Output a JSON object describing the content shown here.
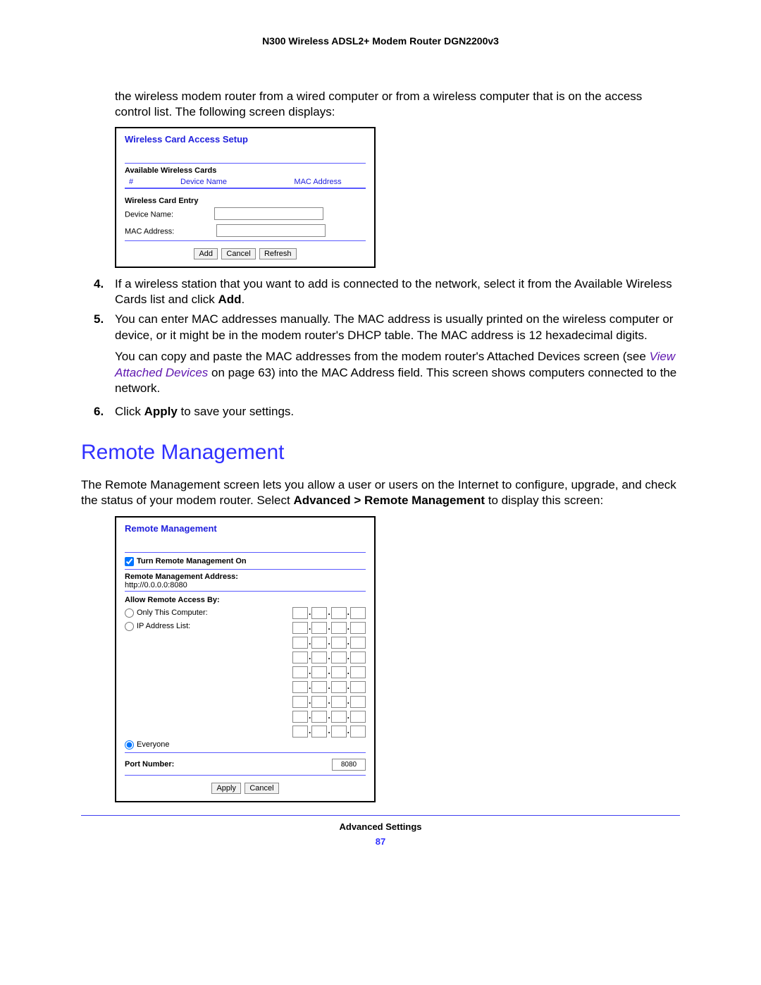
{
  "header": {
    "title": "N300 Wireless ADSL2+ Modem Router DGN2200v3"
  },
  "intro": "the wireless modem router from a wired computer or from a wireless computer that is on the access control list. The following screen displays:",
  "wcas": {
    "title": "Wireless Card Access Setup",
    "available_label": "Available Wireless Cards",
    "col_hash": "#",
    "col_device": "Device Name",
    "col_mac": "MAC Address",
    "entry_label": "Wireless Card Entry",
    "device_name_label": "Device Name:",
    "mac_address_label": "MAC Address:",
    "btn_add": "Add",
    "btn_cancel": "Cancel",
    "btn_refresh": "Refresh"
  },
  "step4": {
    "num": "4.",
    "pre": "If a wireless station that you want to add is connected to the network, select it from the Available Wireless Cards list and click ",
    "bold": "Add",
    "post": "."
  },
  "step5": {
    "num": "5.",
    "text": "You can enter MAC addresses manually. The MAC address is usually printed on the wireless computer or device, or it might be in the modem router's DHCP table. The MAC address is 12 hexadecimal digits.",
    "sub_pre": "You can copy and paste the MAC addresses from the modem router's Attached Devices screen (see ",
    "sub_link": "View Attached Devices",
    "sub_mid": " on page 63) into the MAC Address field. This screen shows computers connected to the network."
  },
  "step6": {
    "num": "6.",
    "pre": "Click ",
    "bold": "Apply",
    "post": " to save your settings."
  },
  "remote_heading": "Remote Management",
  "remote_intro_pre": "The Remote Management screen lets you allow a user or users on the Internet to configure, upgrade, and check the status of your modem router. Select ",
  "remote_intro_bold": "Advanced > Remote Management",
  "remote_intro_post": " to display this screen:",
  "rm": {
    "title": "Remote Management",
    "turn_on_label": "Turn Remote Management On",
    "addr_label": "Remote Management Address:",
    "addr_value": "http://0.0.0.0:8080",
    "allow_label": "Allow Remote Access By:",
    "opt_only": "Only This Computer:",
    "opt_range": "IP Address List:",
    "opt_everyone": "Everyone",
    "port_label": "Port Number:",
    "port_value": "8080",
    "btn_apply": "Apply",
    "btn_cancel": "Cancel",
    "ip_list_rows": 8
  },
  "footer": {
    "section": "Advanced Settings",
    "page": "87"
  },
  "colors": {
    "link_blue": "#3030ff",
    "link_purple": "#6018b0"
  }
}
